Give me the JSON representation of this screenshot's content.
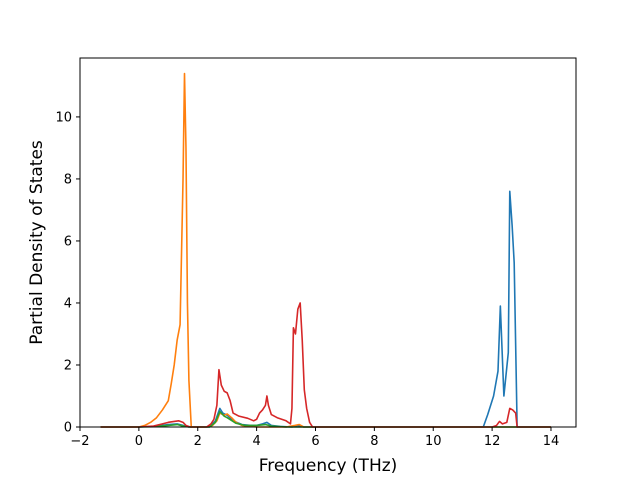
{
  "chart_data": {
    "type": "line",
    "title": "",
    "xlabel": "Frequency (THz)",
    "ylabel": "Partial Density of States",
    "xlim": [
      -2.0,
      14.85
    ],
    "ylim": [
      0,
      11.9
    ],
    "xticks": [
      -2,
      0,
      2,
      4,
      6,
      8,
      10,
      12,
      14
    ],
    "yticks": [
      0,
      2,
      4,
      6,
      8,
      10
    ],
    "grid": false,
    "legend": "none",
    "series": [
      {
        "color": "#1f77b4",
        "points": [
          [
            -1.3,
            0
          ],
          [
            0,
            0
          ],
          [
            0.5,
            0.02
          ],
          [
            1.0,
            0.08
          ],
          [
            1.3,
            0.1
          ],
          [
            1.5,
            0.05
          ],
          [
            1.7,
            0
          ],
          [
            2.4,
            0
          ],
          [
            2.6,
            0.2
          ],
          [
            2.75,
            0.6
          ],
          [
            2.85,
            0.45
          ],
          [
            3.0,
            0.38
          ],
          [
            3.2,
            0.2
          ],
          [
            3.5,
            0.08
          ],
          [
            3.8,
            0.05
          ],
          [
            4.0,
            0.05
          ],
          [
            4.2,
            0.1
          ],
          [
            4.35,
            0.15
          ],
          [
            4.5,
            0.05
          ],
          [
            4.8,
            0.02
          ],
          [
            5.2,
            0
          ],
          [
            5.4,
            0.05
          ],
          [
            5.6,
            0
          ],
          [
            11.7,
            0
          ],
          [
            11.85,
            0.4
          ],
          [
            12.05,
            1.0
          ],
          [
            12.2,
            1.8
          ],
          [
            12.28,
            3.9
          ],
          [
            12.4,
            1.0
          ],
          [
            12.55,
            2.4
          ],
          [
            12.6,
            7.6
          ],
          [
            12.68,
            6.5
          ],
          [
            12.75,
            5.3
          ],
          [
            12.85,
            0
          ],
          [
            14.0,
            0
          ]
        ]
      },
      {
        "color": "#ff7f0e",
        "points": [
          [
            -1.3,
            0
          ],
          [
            0,
            0
          ],
          [
            0.2,
            0.05
          ],
          [
            0.4,
            0.15
          ],
          [
            0.6,
            0.3
          ],
          [
            0.8,
            0.55
          ],
          [
            1.0,
            0.85
          ],
          [
            1.1,
            1.4
          ],
          [
            1.2,
            2.0
          ],
          [
            1.3,
            2.8
          ],
          [
            1.4,
            3.3
          ],
          [
            1.5,
            8.0
          ],
          [
            1.55,
            11.4
          ],
          [
            1.6,
            9.0
          ],
          [
            1.65,
            4.0
          ],
          [
            1.7,
            1.5
          ],
          [
            1.78,
            0
          ],
          [
            2.3,
            0
          ],
          [
            2.5,
            0.05
          ],
          [
            2.65,
            0.2
          ],
          [
            2.75,
            0.45
          ],
          [
            2.9,
            0.38
          ],
          [
            3.0,
            0.42
          ],
          [
            3.15,
            0.3
          ],
          [
            3.3,
            0.15
          ],
          [
            3.5,
            0.05
          ],
          [
            3.8,
            0.02
          ],
          [
            4.0,
            0
          ],
          [
            5.0,
            0
          ],
          [
            5.3,
            0.05
          ],
          [
            5.45,
            0.08
          ],
          [
            5.6,
            0
          ],
          [
            14.0,
            0
          ]
        ]
      },
      {
        "color": "#2ca02c",
        "points": [
          [
            -1.3,
            0
          ],
          [
            0,
            0
          ],
          [
            0.5,
            0.01
          ],
          [
            1.0,
            0.05
          ],
          [
            1.3,
            0.08
          ],
          [
            1.5,
            0.03
          ],
          [
            1.7,
            0
          ],
          [
            2.4,
            0
          ],
          [
            2.6,
            0.15
          ],
          [
            2.75,
            0.5
          ],
          [
            2.9,
            0.35
          ],
          [
            3.0,
            0.3
          ],
          [
            3.3,
            0.12
          ],
          [
            3.6,
            0.05
          ],
          [
            4.0,
            0.05
          ],
          [
            4.3,
            0.08
          ],
          [
            4.5,
            0.03
          ],
          [
            5.0,
            0
          ],
          [
            14.0,
            0
          ]
        ]
      },
      {
        "color": "#d62728",
        "points": [
          [
            -1.3,
            0
          ],
          [
            0,
            0
          ],
          [
            0.5,
            0.03
          ],
          [
            0.8,
            0.1
          ],
          [
            1.0,
            0.15
          ],
          [
            1.2,
            0.18
          ],
          [
            1.35,
            0.2
          ],
          [
            1.5,
            0.15
          ],
          [
            1.6,
            0.05
          ],
          [
            1.75,
            0
          ],
          [
            2.3,
            0
          ],
          [
            2.45,
            0.1
          ],
          [
            2.55,
            0.25
          ],
          [
            2.65,
            0.7
          ],
          [
            2.72,
            1.85
          ],
          [
            2.8,
            1.35
          ],
          [
            2.9,
            1.15
          ],
          [
            3.0,
            1.1
          ],
          [
            3.1,
            0.85
          ],
          [
            3.2,
            0.45
          ],
          [
            3.4,
            0.35
          ],
          [
            3.7,
            0.28
          ],
          [
            3.9,
            0.2
          ],
          [
            4.0,
            0.25
          ],
          [
            4.1,
            0.45
          ],
          [
            4.2,
            0.55
          ],
          [
            4.3,
            0.7
          ],
          [
            4.35,
            1.0
          ],
          [
            4.4,
            0.7
          ],
          [
            4.5,
            0.4
          ],
          [
            4.7,
            0.3
          ],
          [
            5.0,
            0.2
          ],
          [
            5.15,
            0.1
          ],
          [
            5.2,
            0.6
          ],
          [
            5.25,
            3.2
          ],
          [
            5.32,
            3.0
          ],
          [
            5.4,
            3.8
          ],
          [
            5.48,
            4.0
          ],
          [
            5.55,
            2.8
          ],
          [
            5.62,
            1.2
          ],
          [
            5.7,
            0.6
          ],
          [
            5.8,
            0.15
          ],
          [
            5.9,
            0
          ],
          [
            12.0,
            0
          ],
          [
            12.15,
            0.05
          ],
          [
            12.25,
            0.18
          ],
          [
            12.35,
            0.1
          ],
          [
            12.5,
            0.15
          ],
          [
            12.6,
            0.6
          ],
          [
            12.7,
            0.55
          ],
          [
            12.8,
            0.45
          ],
          [
            12.85,
            0
          ],
          [
            14.0,
            0
          ]
        ]
      }
    ]
  }
}
